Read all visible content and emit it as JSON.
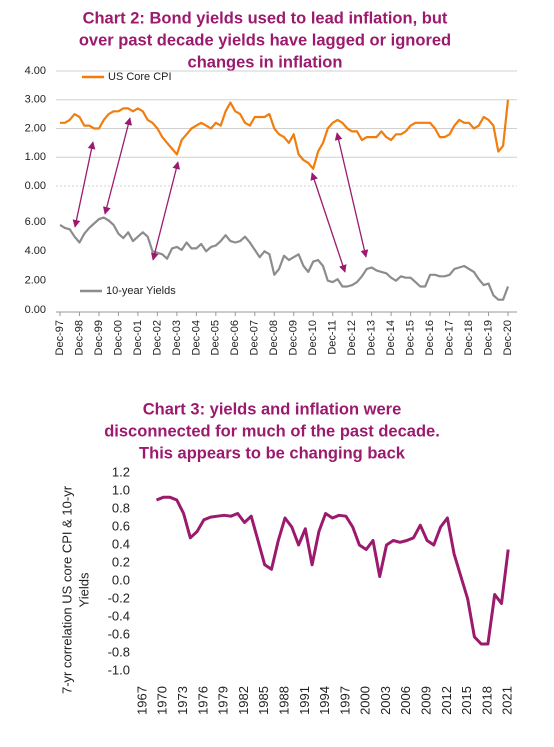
{
  "chart_data": [
    {
      "type": "line",
      "title": [
        "Chart 2: Bond yields used to lead inflation, but",
        "over past decade yields have lagged or ignored",
        "changes in inflation"
      ],
      "x": [
        "Dec-97",
        "Mar-98",
        "Jun-98",
        "Sep-98",
        "Dec-98",
        "Mar-99",
        "Jun-99",
        "Sep-99",
        "Dec-99",
        "Mar-00",
        "Jun-00",
        "Sep-00",
        "Dec-00",
        "Mar-01",
        "Jun-01",
        "Sep-01",
        "Dec-01",
        "Mar-02",
        "Jun-02",
        "Sep-02",
        "Dec-02",
        "Mar-03",
        "Jun-03",
        "Sep-03",
        "Dec-03",
        "Mar-04",
        "Jun-04",
        "Sep-04",
        "Dec-04",
        "Mar-05",
        "Jun-05",
        "Sep-05",
        "Dec-05",
        "Mar-06",
        "Jun-06",
        "Sep-06",
        "Dec-06",
        "Mar-07",
        "Jun-07",
        "Sep-07",
        "Dec-07",
        "Mar-08",
        "Jun-08",
        "Sep-08",
        "Dec-08",
        "Mar-09",
        "Jun-09",
        "Sep-09",
        "Dec-09",
        "Mar-10",
        "Jun-10",
        "Sep-10",
        "Dec-10",
        "Mar-11",
        "Jun-11",
        "Sep-11",
        "Dec-11",
        "Mar-12",
        "Jun-12",
        "Sep-12",
        "Dec-12",
        "Mar-13",
        "Jun-13",
        "Sep-13",
        "Dec-13",
        "Mar-14",
        "Jun-14",
        "Sep-14",
        "Dec-14",
        "Mar-15",
        "Jun-15",
        "Sep-15",
        "Dec-15",
        "Mar-16",
        "Jun-16",
        "Sep-16",
        "Dec-16",
        "Mar-17",
        "Jun-17",
        "Sep-17",
        "Dec-17",
        "Mar-18",
        "Jun-18",
        "Sep-18",
        "Dec-18",
        "Mar-19",
        "Jun-19",
        "Sep-19",
        "Dec-19",
        "Mar-20",
        "Jun-20",
        "Sep-20",
        "Dec-20"
      ],
      "xticks": [
        "Dec-97",
        "Dec-98",
        "Dec-99",
        "Dec-00",
        "Dec-01",
        "Dec-02",
        "Dec-03",
        "Dec-04",
        "Dec-05",
        "Dec-06",
        "Dec-07",
        "Dec-08",
        "Dec-09",
        "Dec-10",
        "Dec-11",
        "Dec-12",
        "Dec-13",
        "Dec-14",
        "Dec-15",
        "Dec-16",
        "Dec-17",
        "Dec-18",
        "Dec-19",
        "Dec-20"
      ],
      "ylim": [
        0,
        4
      ],
      "yticks": [
        {
          "value": 0,
          "label": "0.00"
        },
        {
          "value": 1,
          "label": "1.00"
        },
        {
          "value": 2,
          "label": "2.00"
        },
        {
          "value": 3,
          "label": "3.00"
        },
        {
          "value": 4,
          "label": "4.00"
        }
      ],
      "y2lim": [
        0,
        6
      ],
      "y2ticks": [
        {
          "value": 0,
          "label": "0.00"
        },
        {
          "value": 2,
          "label": "2.00"
        },
        {
          "value": 4,
          "label": "4.00"
        },
        {
          "value": 6,
          "label": "6.00"
        }
      ],
      "series": [
        {
          "name": "US Core CPI",
          "color": "#f07d0e",
          "values": [
            2.2,
            2.2,
            2.3,
            2.5,
            2.4,
            2.1,
            2.1,
            2.0,
            2.0,
            2.3,
            2.5,
            2.6,
            2.6,
            2.7,
            2.7,
            2.6,
            2.7,
            2.6,
            2.3,
            2.2,
            2.0,
            1.7,
            1.5,
            1.3,
            1.1,
            1.6,
            1.8,
            2.0,
            2.1,
            2.2,
            2.1,
            2.0,
            2.2,
            2.1,
            2.6,
            2.9,
            2.6,
            2.5,
            2.2,
            2.1,
            2.4,
            2.4,
            2.4,
            2.5,
            2.0,
            1.8,
            1.7,
            1.5,
            1.8,
            1.1,
            0.9,
            0.8,
            0.6,
            1.2,
            1.5,
            2.0,
            2.2,
            2.3,
            2.2,
            2.0,
            1.9,
            1.9,
            1.6,
            1.7,
            1.7,
            1.7,
            1.9,
            1.7,
            1.6,
            1.8,
            1.8,
            1.9,
            2.1,
            2.2,
            2.2,
            2.2,
            2.2,
            2.0,
            1.7,
            1.7,
            1.8,
            2.1,
            2.3,
            2.2,
            2.2,
            2.0,
            2.1,
            2.4,
            2.3,
            2.1,
            1.2,
            1.4,
            3.0
          ]
        },
        {
          "name": "10-year Yields",
          "color": "#8c8c8c",
          "axis": "y2",
          "values": [
            5.8,
            5.6,
            5.5,
            5.0,
            4.6,
            5.2,
            5.6,
            5.9,
            6.2,
            6.3,
            6.1,
            5.8,
            5.2,
            4.9,
            5.3,
            4.7,
            5.0,
            5.3,
            5.0,
            4.0,
            3.9,
            3.8,
            3.5,
            4.2,
            4.3,
            4.1,
            4.6,
            4.2,
            4.2,
            4.5,
            4.0,
            4.3,
            4.4,
            4.7,
            5.1,
            4.7,
            4.6,
            4.7,
            5.0,
            4.6,
            4.1,
            3.6,
            4.0,
            3.8,
            2.4,
            2.8,
            3.7,
            3.4,
            3.6,
            3.8,
            3.0,
            2.6,
            3.3,
            3.4,
            3.0,
            2.0,
            1.9,
            2.1,
            1.6,
            1.6,
            1.7,
            1.9,
            2.3,
            2.8,
            2.9,
            2.7,
            2.6,
            2.5,
            2.2,
            2.0,
            2.3,
            2.2,
            2.2,
            1.9,
            1.6,
            1.6,
            2.4,
            2.4,
            2.3,
            2.3,
            2.4,
            2.8,
            2.9,
            3.0,
            2.8,
            2.6,
            2.1,
            1.7,
            1.8,
            1.0,
            0.7,
            0.7,
            1.6
          ]
        }
      ]
    },
    {
      "type": "line",
      "title": [
        "Chart 3: yields and inflation were",
        "disconnected for much of the past decade.",
        "This appears to be changing back"
      ],
      "ylabel": [
        "7-yr correlation US core CPI & 10-yr",
        "Yields"
      ],
      "x": [
        1969,
        1970,
        1971,
        1972,
        1973,
        1974,
        1975,
        1976,
        1977,
        1978,
        1979,
        1980,
        1981,
        1982,
        1983,
        1984,
        1985,
        1986,
        1987,
        1988,
        1989,
        1990,
        1991,
        1992,
        1993,
        1994,
        1995,
        1996,
        1997,
        1998,
        1999,
        2000,
        2001,
        2002,
        2003,
        2004,
        2005,
        2006,
        2007,
        2008,
        2009,
        2010,
        2011,
        2012,
        2013,
        2014,
        2015,
        2016,
        2017,
        2018,
        2019,
        2020,
        2021
      ],
      "xlim": [
        1967,
        2022
      ],
      "xticks": [
        1967,
        1970,
        1973,
        1976,
        1979,
        1982,
        1985,
        1988,
        1991,
        1994,
        1997,
        2000,
        2003,
        2006,
        2009,
        2012,
        2015,
        2018,
        2021
      ],
      "ylim": [
        -1,
        1.2
      ],
      "yticks": [
        {
          "value": -1,
          "label": "-1.0"
        },
        -0.8,
        -0.6,
        -0.4,
        -0.2,
        {
          "value": 0,
          "label": "0.0"
        },
        0.2,
        0.4,
        0.6,
        0.8,
        {
          "value": 1,
          "label": "1.0"
        },
        1.2
      ],
      "color": "#9c1a6e",
      "values": [
        0.9,
        0.93,
        0.93,
        0.9,
        0.75,
        0.48,
        0.55,
        0.68,
        0.71,
        0.72,
        0.73,
        0.72,
        0.75,
        0.65,
        0.72,
        0.45,
        0.18,
        0.13,
        0.45,
        0.7,
        0.6,
        0.4,
        0.58,
        0.18,
        0.55,
        0.75,
        0.7,
        0.73,
        0.72,
        0.6,
        0.4,
        0.35,
        0.45,
        0.05,
        0.4,
        0.45,
        0.43,
        0.45,
        0.48,
        0.62,
        0.45,
        0.4,
        0.6,
        0.7,
        0.3,
        0.05,
        -0.2,
        -0.62,
        -0.7,
        -0.7,
        -0.15,
        -0.25,
        0.35
      ]
    }
  ]
}
